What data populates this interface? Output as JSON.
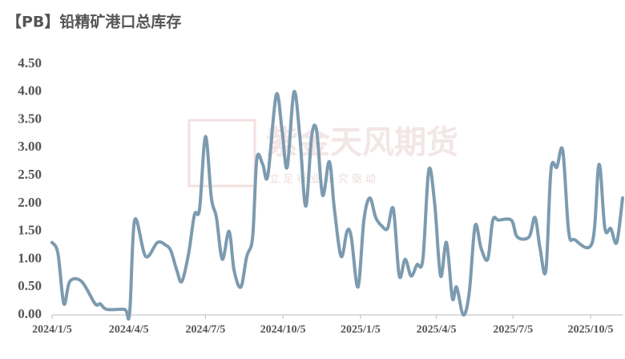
{
  "chart_data": {
    "type": "line",
    "title": "【PB】铅精矿港口总库存",
    "watermark": "紫金天风期货",
    "watermark_slogan": "立 足 行 业   研 究 驱 动",
    "x": [
      "2024/1/5",
      "2024/1/12",
      "2024/1/19",
      "2024/1/26",
      "2024/2/9",
      "2024/2/25",
      "2024/3/2",
      "2024/3/10",
      "2024/3/31",
      "2024/4/6",
      "2024/4/12",
      "2024/4/25",
      "2024/5/9",
      "2024/5/19",
      "2024/5/25",
      "2024/6/1",
      "2024/6/7",
      "2024/6/15",
      "2024/6/22",
      "2024/6/28",
      "2024/7/5",
      "2024/7/12",
      "2024/7/18",
      "2024/7/25",
      "2024/8/2",
      "2024/8/8",
      "2024/8/16",
      "2024/8/23",
      "2024/8/30",
      "2024/9/4",
      "2024/9/11",
      "2024/9/17",
      "2024/9/27",
      "2024/10/4",
      "2024/10/10",
      "2024/10/18",
      "2024/10/25",
      "2024/11/1",
      "2024/11/8",
      "2024/11/14",
      "2024/11/21",
      "2024/11/29",
      "2024/12/5",
      "2024/12/13",
      "2024/12/20",
      "2024/12/25",
      "2025/1/2",
      "2025/1/9",
      "2025/1/16",
      "2025/1/23",
      "2025/1/30",
      "2025/2/6",
      "2025/2/13",
      "2025/2/20",
      "2025/2/27",
      "2025/3/6",
      "2025/3/13",
      "2025/3/20",
      "2025/3/27",
      "2025/4/3",
      "2025/4/10",
      "2025/4/17",
      "2025/4/24",
      "2025/4/29",
      "2025/5/7",
      "2025/5/14",
      "2025/5/21",
      "2025/5/28",
      "2025/6/5",
      "2025/6/11",
      "2025/6/18",
      "2025/7/3",
      "2025/7/10",
      "2025/7/24",
      "2025/7/31",
      "2025/8/6",
      "2025/8/13",
      "2025/8/19",
      "2025/8/26",
      "2025/9/2",
      "2025/9/9",
      "2025/9/16",
      "2025/10/7",
      "2025/10/15",
      "2025/10/22",
      "2025/10/29",
      "2025/11/5",
      "2025/11/12"
    ],
    "series": [
      {
        "color": "#7c9bb0",
        "values": [
          1.3,
          1.1,
          0.2,
          0.6,
          0.6,
          0.2,
          0.2,
          0.1,
          0.1,
          0.03,
          1.7,
          1.05,
          1.3,
          1.25,
          1.15,
          0.8,
          0.6,
          1.1,
          1.8,
          1.9,
          3.2,
          2.1,
          1.75,
          1.0,
          1.5,
          0.8,
          0.5,
          1.05,
          1.4,
          2.8,
          2.7,
          2.5,
          3.95,
          3.3,
          2.65,
          4.0,
          3.2,
          1.95,
          3.2,
          3.3,
          2.15,
          2.75,
          1.9,
          1.05,
          1.5,
          1.4,
          0.5,
          1.7,
          2.1,
          1.75,
          1.6,
          1.55,
          1.9,
          0.7,
          1.0,
          0.7,
          0.9,
          1.0,
          2.6,
          2.0,
          0.7,
          1.3,
          0.3,
          0.5,
          0.0,
          0.4,
          1.6,
          1.2,
          1.0,
          1.7,
          1.7,
          1.7,
          1.4,
          1.4,
          1.75,
          1.2,
          0.8,
          2.6,
          2.65,
          2.95,
          1.5,
          1.35,
          1.3,
          2.7,
          1.55,
          1.55,
          1.3,
          2.1
        ]
      }
    ],
    "xlim": [
      "2024/1/5",
      "2025/11/12"
    ],
    "xticks": [
      "2024/1/5",
      "2024/4/5",
      "2024/7/5",
      "2024/10/5",
      "2025/1/5",
      "2025/4/5",
      "2025/7/5",
      "2025/10/5"
    ],
    "ylim": [
      0,
      4.5
    ],
    "yticks": [
      {
        "value": 0,
        "label": "0.00"
      },
      {
        "value": 0.5,
        "label": "0.50"
      },
      {
        "value": 1,
        "label": "1.00"
      },
      {
        "value": 1.5,
        "label": "1.50"
      },
      {
        "value": 2,
        "label": "2.00"
      },
      {
        "value": 2.5,
        "label": "2.50"
      },
      {
        "value": 3,
        "label": "3.00"
      },
      {
        "value": 3.5,
        "label": "3.50"
      },
      {
        "value": 4,
        "label": "4.00"
      },
      {
        "value": 4.5,
        "label": "4.50"
      }
    ],
    "grid": false
  }
}
